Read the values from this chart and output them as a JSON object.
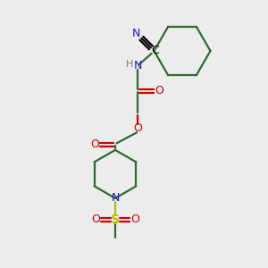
{
  "bg_color": "#ececec",
  "gc": "#2d6b2d",
  "nc": "#1a1acc",
  "oc": "#cc0000",
  "sc": "#b8b800",
  "cc": "#000000",
  "hc": "#7a7a7a",
  "lw": 1.6,
  "figsize": [
    3.0,
    3.0
  ],
  "dpi": 100,
  "xlim": [
    0,
    10
  ],
  "ylim": [
    0,
    10
  ]
}
